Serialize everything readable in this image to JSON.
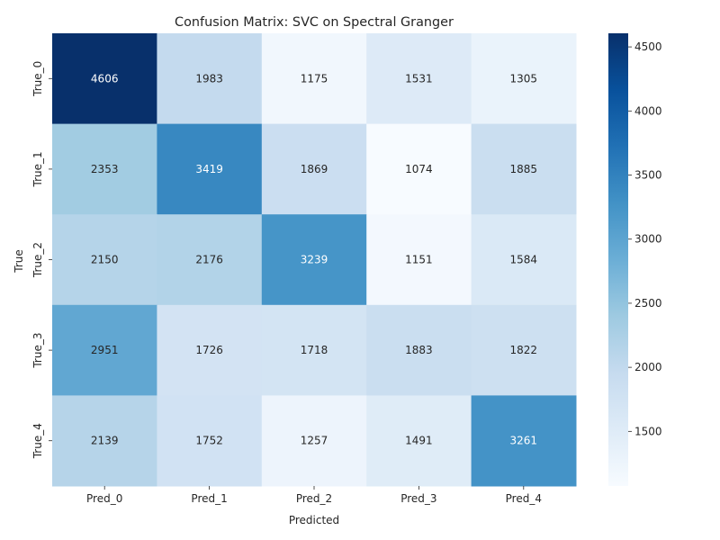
{
  "chart_data": {
    "type": "heatmap",
    "title": "Confusion Matrix: SVC on Spectral Granger",
    "xlabel": "Predicted",
    "ylabel": "True",
    "x_categories": [
      "Pred_0",
      "Pred_1",
      "Pred_2",
      "Pred_3",
      "Pred_4"
    ],
    "y_categories": [
      "True_0",
      "True_1",
      "True_2",
      "True_3",
      "True_4"
    ],
    "values": [
      [
        4606,
        1983,
        1175,
        1531,
        1305
      ],
      [
        2353,
        3419,
        1869,
        1074,
        1885
      ],
      [
        2150,
        2176,
        3239,
        1151,
        1584
      ],
      [
        2951,
        1726,
        1718,
        1883,
        1822
      ],
      [
        2139,
        1752,
        1257,
        1491,
        3261
      ]
    ],
    "colorbar": {
      "colormap": "Blues",
      "min": 1074,
      "max": 4606,
      "ticks": [
        1500,
        2000,
        2500,
        3000,
        3500,
        4000,
        4500
      ]
    },
    "grid": false
  }
}
